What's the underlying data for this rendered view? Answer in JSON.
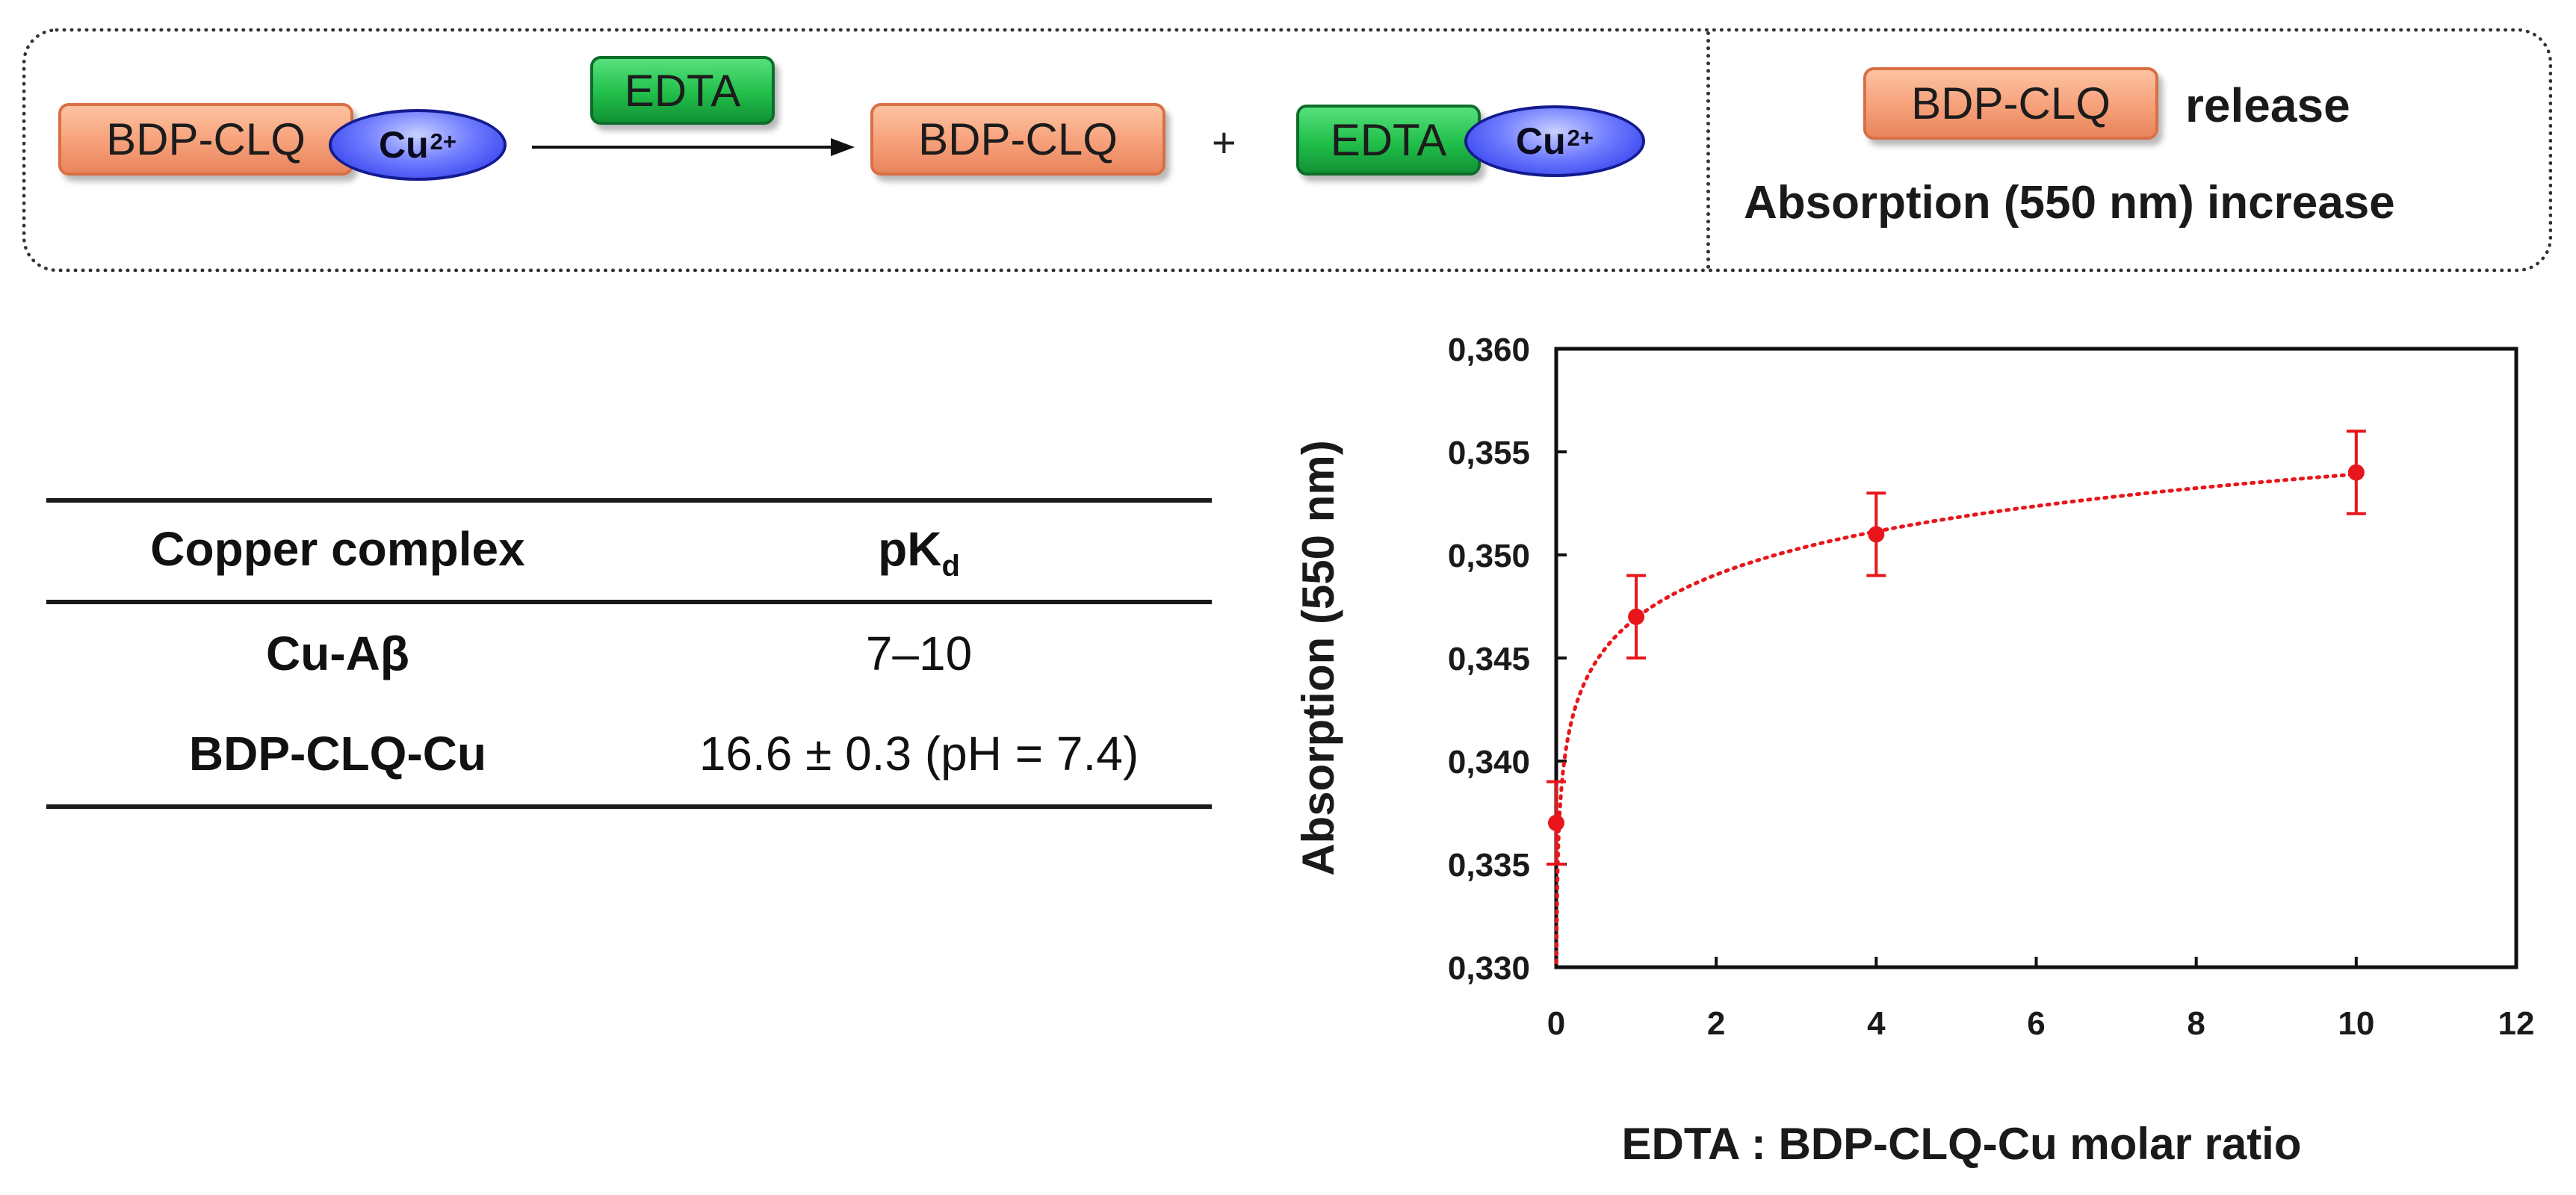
{
  "scheme": {
    "left_complex_label": "BDP-CLQ",
    "copper_label": "Cu",
    "copper_charge": "2+",
    "reagent_label": "EDTA",
    "product1_label": "BDP-CLQ",
    "plus_sign": "+",
    "product2_label": "EDTA",
    "release_pill_label": "BDP-CLQ",
    "release_text": "release",
    "absorption_text": "Absorption (550 nm) increase"
  },
  "table": {
    "headers": {
      "complex": "Copper complex",
      "pkd_main": "pK",
      "pkd_sub": "d"
    },
    "rows": [
      {
        "complex": "Cu-Aβ",
        "pkd": "7–10"
      },
      {
        "complex": "BDP-CLQ-Cu",
        "pkd": "16.6 ± 0.3 (pH = 7.4)"
      }
    ]
  },
  "colors": {
    "series": "#e8161b",
    "bdp_fill": "#f6a07a",
    "edta_fill": "#21bf4a",
    "copper_fill": "#3f4cf0"
  },
  "chart_data": {
    "type": "scatter",
    "title": "",
    "xlabel": "EDTA : BDP-CLQ-Cu molar ratio",
    "ylabel": "Absorption (550 nm)",
    "xlim": [
      0,
      12
    ],
    "ylim": [
      0.33,
      0.36
    ],
    "x_ticks": [
      0,
      2,
      4,
      6,
      8,
      10,
      12
    ],
    "x_tick_labels": [
      "0",
      "2",
      "4",
      "6",
      "8",
      "10",
      "12"
    ],
    "y_ticks": [
      0.33,
      0.335,
      0.34,
      0.345,
      0.35,
      0.355,
      0.36
    ],
    "y_tick_labels": [
      "0,330",
      "0,335",
      "0,340",
      "0,345",
      "0,350",
      "0,355",
      "0,360"
    ],
    "grid": false,
    "series": [
      {
        "name": "Absorption",
        "x": [
          0,
          1,
          4,
          10
        ],
        "y": [
          0.337,
          0.347,
          0.351,
          0.354
        ],
        "error": [
          0.002,
          0.002,
          0.002,
          0.002
        ]
      }
    ],
    "trendline": {
      "type": "logarithmic",
      "style": "dotted",
      "x_range": [
        0,
        10
      ]
    }
  }
}
